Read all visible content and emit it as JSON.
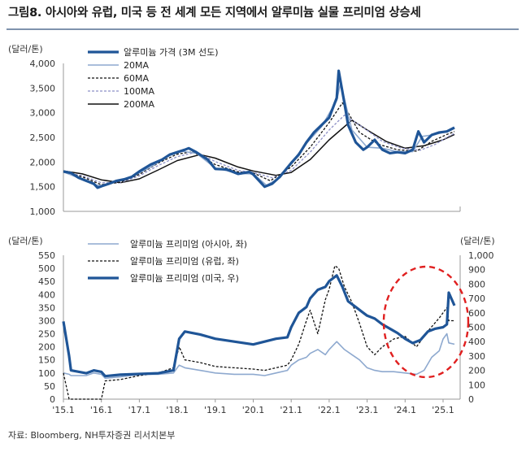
{
  "title": "그림8. 아시아와 유럽, 미국 등 전 세계 모든 지역에서 알루미늄 실물 프리미엄 상승세",
  "source": "자료: Bloomberg, NH투자증권 리서치본부",
  "colors": {
    "navy": "#1f5597",
    "light": "#8ea9cf",
    "black": "#111111",
    "lavender": "#8c8fc6",
    "red": "#e02020"
  },
  "chart_data": [
    {
      "type": "line",
      "y_unit": "(달러/톤)",
      "ylim": [
        1000,
        4000
      ],
      "yticks": [
        "4,000",
        "3,500",
        "3,000",
        "2,500",
        "2,000",
        "1,500",
        "1,000"
      ],
      "legend_placement": "top-left",
      "series": [
        {
          "name": "알루미늄 가격 (3M 선도)",
          "style": "thick navy solid",
          "x": [
            2015.0,
            2015.2,
            2015.4,
            2015.6,
            2015.8,
            2015.9,
            2016.0,
            2016.2,
            2016.4,
            2016.6,
            2016.8,
            2017.0,
            2017.3,
            2017.6,
            2017.8,
            2018.0,
            2018.2,
            2018.3,
            2018.5,
            2018.8,
            2019.0,
            2019.3,
            2019.6,
            2019.9,
            2020.0,
            2020.3,
            2020.5,
            2020.7,
            2021.0,
            2021.2,
            2021.4,
            2021.6,
            2021.8,
            2022.0,
            2022.2,
            2022.25,
            2022.4,
            2022.5,
            2022.7,
            2022.9,
            2023.0,
            2023.2,
            2023.4,
            2023.6,
            2023.8,
            2024.0,
            2024.2,
            2024.35,
            2024.5,
            2024.7,
            2024.9,
            2025.1,
            2025.3
          ],
          "y": [
            1810,
            1780,
            1680,
            1620,
            1560,
            1480,
            1510,
            1560,
            1620,
            1650,
            1700,
            1810,
            1950,
            2050,
            2150,
            2200,
            2250,
            2280,
            2200,
            2050,
            1860,
            1850,
            1760,
            1800,
            1750,
            1500,
            1560,
            1700,
            1980,
            2150,
            2400,
            2600,
            2750,
            2900,
            3300,
            3850,
            3200,
            2750,
            2400,
            2250,
            2300,
            2450,
            2250,
            2180,
            2200,
            2180,
            2250,
            2620,
            2400,
            2550,
            2600,
            2620,
            2700
          ]
        },
        {
          "name": "20MA",
          "style": "light blue solid",
          "x": [
            2015.0,
            2015.4,
            2015.8,
            2016.0,
            2016.4,
            2016.8,
            2017.3,
            2017.8,
            2018.1,
            2018.5,
            2019.0,
            2019.6,
            2020.0,
            2020.35,
            2020.7,
            2021.0,
            2021.4,
            2021.8,
            2022.2,
            2022.3,
            2022.6,
            2023.0,
            2023.4,
            2023.8,
            2024.2,
            2024.45,
            2024.8,
            2025.1,
            2025.3
          ],
          "y": [
            1800,
            1680,
            1540,
            1520,
            1620,
            1700,
            1900,
            2150,
            2220,
            2180,
            1880,
            1770,
            1760,
            1530,
            1680,
            1980,
            2380,
            2720,
            3250,
            3600,
            2650,
            2300,
            2280,
            2210,
            2210,
            2520,
            2560,
            2620,
            2680
          ]
        },
        {
          "name": "60MA",
          "style": "black dashed",
          "x": [
            2015.0,
            2015.5,
            2016.0,
            2016.5,
            2017.0,
            2017.5,
            2018.0,
            2018.4,
            2019.0,
            2019.6,
            2020.0,
            2020.45,
            2021.0,
            2021.5,
            2022.0,
            2022.35,
            2022.8,
            2023.3,
            2023.8,
            2024.3,
            2024.7,
            2025.1,
            2025.3
          ],
          "y": [
            1800,
            1700,
            1540,
            1590,
            1750,
            1980,
            2160,
            2210,
            1950,
            1800,
            1780,
            1620,
            1900,
            2300,
            2800,
            3200,
            2600,
            2360,
            2250,
            2220,
            2420,
            2560,
            2620
          ]
        },
        {
          "name": "100MA",
          "style": "lavender dashed",
          "x": [
            2015.0,
            2015.5,
            2016.0,
            2016.5,
            2017.0,
            2017.5,
            2018.0,
            2018.5,
            2019.0,
            2019.6,
            2020.0,
            2020.5,
            2021.0,
            2021.5,
            2022.0,
            2022.4,
            2022.9,
            2023.4,
            2023.9,
            2024.4,
            2024.8,
            2025.1,
            2025.3
          ],
          "y": [
            1800,
            1720,
            1580,
            1580,
            1720,
            1930,
            2110,
            2200,
            2010,
            1830,
            1790,
            1680,
            1830,
            2200,
            2650,
            2950,
            2700,
            2420,
            2280,
            2240,
            2360,
            2500,
            2580
          ]
        },
        {
          "name": "200MA",
          "style": "black solid",
          "x": [
            2015.0,
            2015.5,
            2016.0,
            2016.5,
            2017.0,
            2017.5,
            2018.0,
            2018.6,
            2019.0,
            2019.6,
            2020.0,
            2020.6,
            2021.0,
            2021.5,
            2022.0,
            2022.6,
            2023.0,
            2023.5,
            2024.0,
            2024.5,
            2025.0,
            2025.3
          ],
          "y": [
            1820,
            1760,
            1640,
            1580,
            1660,
            1840,
            2030,
            2150,
            2080,
            1900,
            1820,
            1730,
            1790,
            2050,
            2450,
            2850,
            2650,
            2420,
            2280,
            2330,
            2450,
            2560
          ]
        }
      ]
    },
    {
      "type": "line",
      "y_unit_left": "(달러/톤)",
      "y_unit_right": "(달러/톤)",
      "ylim_left": [
        0,
        550
      ],
      "ylim_right": [
        0,
        1000
      ],
      "yticks_left": [
        "550",
        "500",
        "450",
        "400",
        "350",
        "300",
        "250",
        "200",
        "150",
        "100",
        "50",
        "0"
      ],
      "yticks_right": [
        "1,000",
        "900",
        "800",
        "700",
        "600",
        "500",
        "400",
        "300",
        "200",
        "100",
        "0"
      ],
      "categories": [
        "'15.1",
        "'16.1",
        "'17.1",
        "'18.1",
        "'19.1",
        "'20.1",
        "'21.1",
        "'22.1",
        "'23.1",
        "'24.1",
        "'25.1"
      ],
      "legend_placement": "top-center",
      "annotation": "red dashed circle around 2024–2025 rise",
      "series": [
        {
          "name": "알루미늄 프리미엄 (아시아, 좌)",
          "axis": "left",
          "style": "light blue solid",
          "x": [
            2015.0,
            2015.15,
            2015.2,
            2015.6,
            2015.8,
            2016.0,
            2016.1,
            2016.5,
            2017.0,
            2017.5,
            2017.9,
            2018.05,
            2018.2,
            2018.6,
            2019.0,
            2019.5,
            2020.0,
            2020.3,
            2020.6,
            2020.9,
            2021.0,
            2021.2,
            2021.4,
            2021.5,
            2021.7,
            2021.9,
            2022.0,
            2022.2,
            2022.4,
            2022.6,
            2022.8,
            2023.0,
            2023.2,
            2023.4,
            2023.7,
            2024.0,
            2024.3,
            2024.5,
            2024.7,
            2024.9,
            2025.0,
            2025.1,
            2025.15,
            2025.3
          ],
          "y": [
            100,
            95,
            90,
            90,
            100,
            95,
            80,
            85,
            95,
            95,
            100,
            130,
            120,
            110,
            100,
            95,
            95,
            90,
            100,
            110,
            130,
            150,
            160,
            175,
            190,
            170,
            190,
            220,
            190,
            170,
            150,
            120,
            110,
            105,
            105,
            100,
            95,
            110,
            160,
            185,
            230,
            250,
            215,
            210
          ]
        },
        {
          "name": "알루미늄 프리미엄 (유럽, 좌)",
          "axis": "left",
          "style": "black dashed",
          "x": [
            2015.0,
            2015.15,
            2015.2,
            2015.6,
            2015.8,
            2016.0,
            2016.1,
            2016.5,
            2017.0,
            2017.5,
            2017.9,
            2018.05,
            2018.2,
            2018.6,
            2019.0,
            2019.5,
            2020.0,
            2020.3,
            2020.6,
            2020.9,
            2021.0,
            2021.2,
            2021.4,
            2021.5,
            2021.7,
            2021.9,
            2022.0,
            2022.15,
            2022.25,
            2022.4,
            2022.6,
            2022.8,
            2023.0,
            2023.2,
            2023.4,
            2023.7,
            2024.0,
            2024.3,
            2024.6,
            2024.9,
            2025.0,
            2025.1,
            2025.15,
            2025.3
          ],
          "y": [
            100,
            0,
            0,
            0,
            0,
            0,
            70,
            75,
            90,
            100,
            120,
            200,
            150,
            140,
            125,
            120,
            115,
            110,
            120,
            130,
            150,
            210,
            300,
            340,
            250,
            380,
            420,
            510,
            500,
            430,
            370,
            290,
            200,
            170,
            200,
            230,
            240,
            200,
            260,
            310,
            330,
            350,
            300,
            300
          ]
        },
        {
          "name": "알루미늄 프리미엄 (미국, 우)",
          "axis": "right",
          "style": "thick navy solid",
          "x": [
            2015.0,
            2015.15,
            2015.2,
            2015.6,
            2015.8,
            2016.0,
            2016.1,
            2016.5,
            2017.0,
            2017.5,
            2017.9,
            2018.05,
            2018.2,
            2018.6,
            2019.0,
            2019.5,
            2020.0,
            2020.3,
            2020.6,
            2020.9,
            2021.0,
            2021.2,
            2021.4,
            2021.5,
            2021.7,
            2021.9,
            2022.0,
            2022.2,
            2022.35,
            2022.5,
            2022.7,
            2022.9,
            2023.0,
            2023.2,
            2023.4,
            2023.6,
            2023.8,
            2024.0,
            2024.2,
            2024.4,
            2024.6,
            2024.8,
            2025.0,
            2025.1,
            2025.15,
            2025.3
          ],
          "y": [
            540,
            300,
            200,
            180,
            200,
            190,
            160,
            170,
            175,
            180,
            200,
            420,
            470,
            450,
            420,
            400,
            380,
            400,
            420,
            430,
            500,
            600,
            640,
            700,
            760,
            780,
            820,
            860,
            780,
            680,
            640,
            600,
            580,
            560,
            520,
            490,
            460,
            420,
            390,
            410,
            470,
            490,
            500,
            520,
            740,
            650
          ]
        }
      ]
    }
  ]
}
